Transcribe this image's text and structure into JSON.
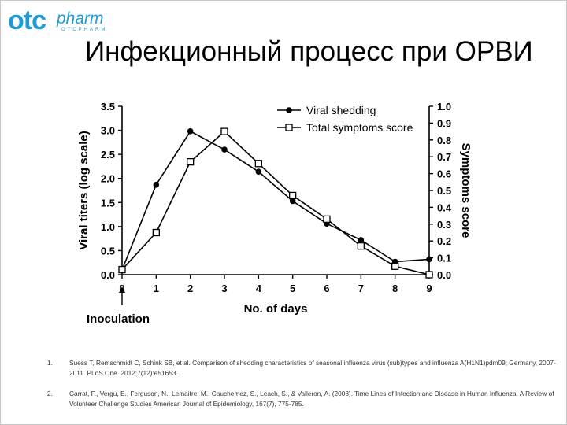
{
  "logo": {
    "part1": "otc",
    "part2": "pharm",
    "part3": "OTCPHARM"
  },
  "slide": {
    "title": "Инфекционный процесс при ОРВИ"
  },
  "chart_data": {
    "type": "line",
    "xlabel": "No. of days",
    "ylabel": "Viral titers (log scale)",
    "y2label": "Symptoms score",
    "x": [
      0,
      1,
      2,
      3,
      4,
      5,
      6,
      7,
      8,
      9
    ],
    "xlim": [
      0,
      9
    ],
    "ylim": [
      0,
      3.5
    ],
    "y2lim": [
      0,
      1.0
    ],
    "yticks": [
      "0.0",
      "0.5",
      "1.0",
      "1.5",
      "2.0",
      "2.5",
      "3.0",
      "3.5"
    ],
    "y2ticks": [
      "0.0",
      "0.1",
      "0.2",
      "0.3",
      "0.4",
      "0.5",
      "0.6",
      "0.7",
      "0.8",
      "0.9",
      "1.0"
    ],
    "xticks": [
      "0",
      "1",
      "2",
      "3",
      "4",
      "5",
      "6",
      "7",
      "8",
      "9"
    ],
    "annotation": "Inoculation",
    "legend_position": "top-right",
    "series": [
      {
        "name": "Viral shedding",
        "axis": "left",
        "marker": "filled-circle",
        "values": [
          0.1,
          1.87,
          2.98,
          2.6,
          2.14,
          1.53,
          1.06,
          0.72,
          0.27,
          0.32
        ]
      },
      {
        "name": "Total symptoms score",
        "axis": "right",
        "marker": "open-square",
        "values": [
          0.03,
          0.25,
          0.67,
          0.85,
          0.66,
          0.47,
          0.33,
          0.17,
          0.05,
          0.0
        ]
      }
    ]
  },
  "references": [
    {
      "num": "1.",
      "text": "Suess T, Remschmidt C, Schink SB, et al. Comparison of shedding characteristics of seasonal influenza virus (sub)types and influenza A(H1N1)pdm09; Germany, 2007-2011. PLoS One. 2012;7(12):e51653."
    },
    {
      "num": "2.",
      "text": "Carrat, F., Vergu, E., Ferguson, N., Lemaitre, M., Cauchemez, S., Leach, S., & Valleron, A. (2008). Time Lines of Infection and Disease in Human Influenza: A Review of Volunteer Challenge Studies American Journal of Epidemiology, 167(7), 775-785."
    }
  ]
}
